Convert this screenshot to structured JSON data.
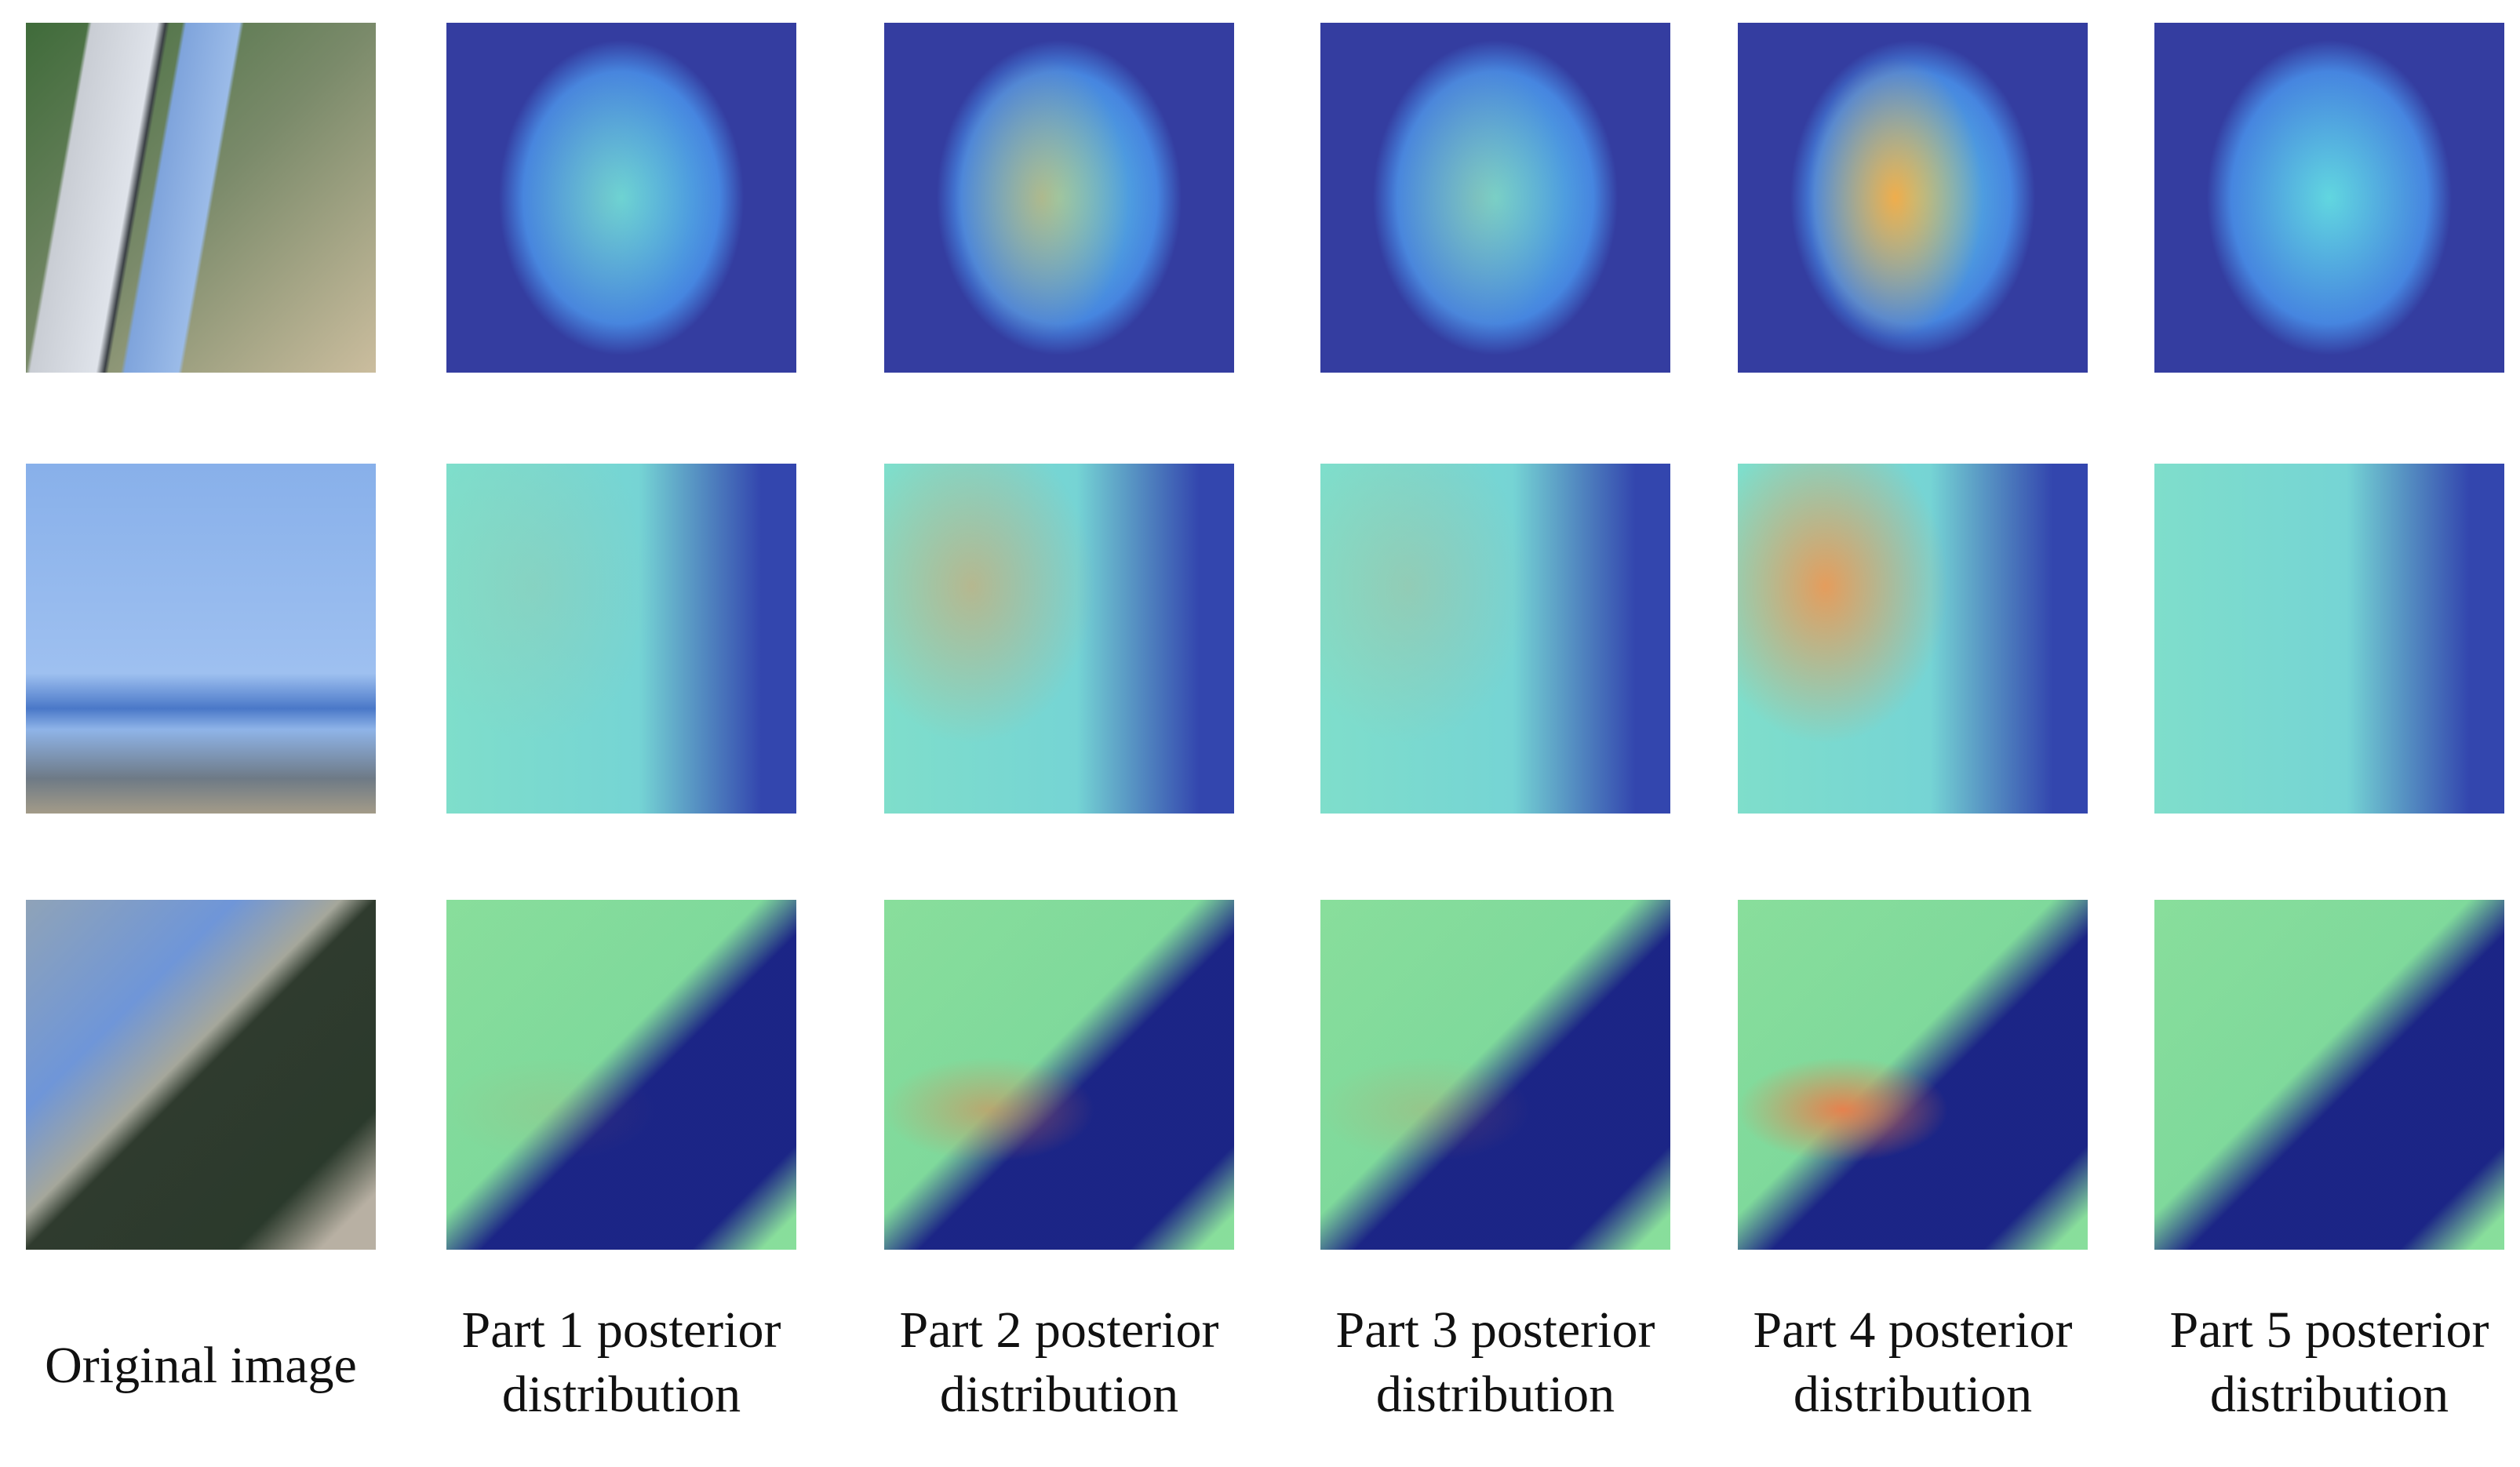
{
  "captions": [
    [
      "Original image"
    ],
    [
      "Part 1 posterior",
      "distribution"
    ],
    [
      "Part 2 posterior",
      "distribution"
    ],
    [
      "Part 3 posterior",
      "distribution"
    ],
    [
      "Part 4 posterior",
      "distribution"
    ],
    [
      "Part 5 posterior",
      "distribution"
    ]
  ]
}
